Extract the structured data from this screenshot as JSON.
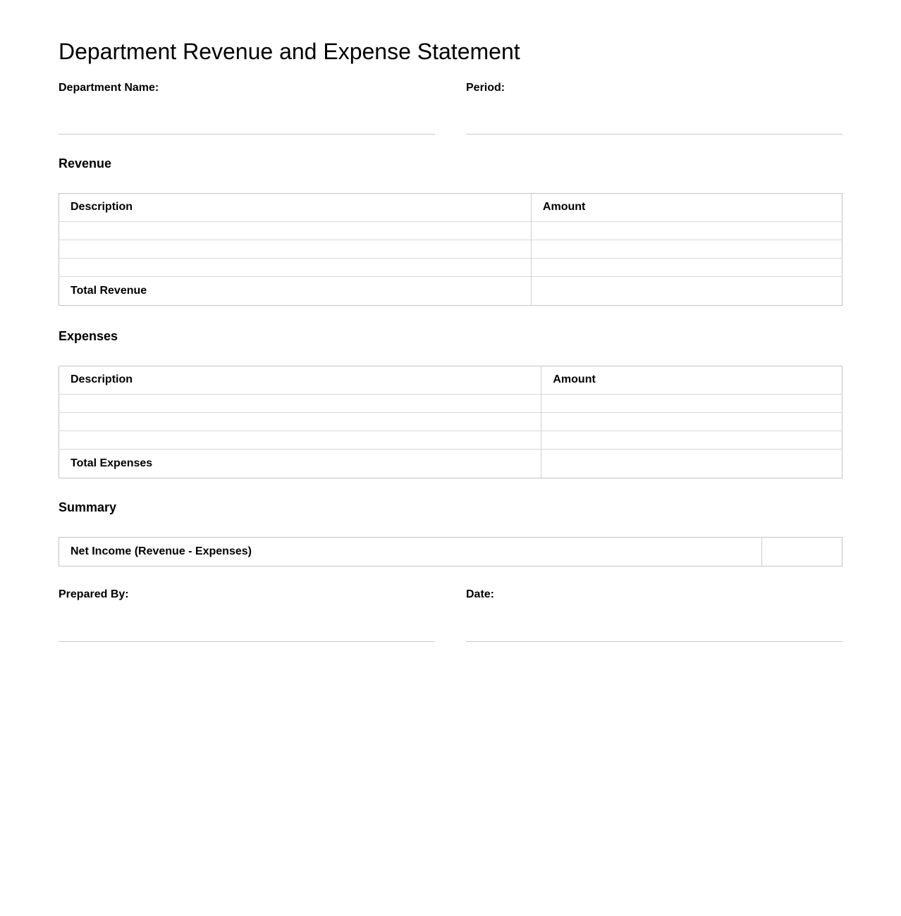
{
  "title": "Department Revenue and Expense Statement",
  "fields": {
    "department_name": {
      "label": "Department Name:",
      "value": ""
    },
    "period": {
      "label": "Period:",
      "value": ""
    },
    "prepared_by": {
      "label": "Prepared By:",
      "value": ""
    },
    "date": {
      "label": "Date:",
      "value": ""
    }
  },
  "revenue": {
    "heading": "Revenue",
    "columns": [
      "Description",
      "Amount"
    ],
    "rows": [
      [
        "",
        ""
      ],
      [
        "",
        ""
      ],
      [
        "",
        ""
      ]
    ],
    "total_label": "Total Revenue",
    "total_value": ""
  },
  "expenses": {
    "heading": "Expenses",
    "columns": [
      "Description",
      "Amount"
    ],
    "rows": [
      [
        "",
        ""
      ],
      [
        "",
        ""
      ],
      [
        "",
        ""
      ]
    ],
    "total_label": "Total Expenses",
    "total_value": ""
  },
  "summary": {
    "heading": "Summary",
    "net_income_label": "Net Income (Revenue - Expenses)",
    "net_income_value": ""
  },
  "colors": {
    "background": "#ffffff",
    "text": "#000000",
    "table_outer_border": "#c4c4c4",
    "table_inner_line": "#d9d9d9",
    "table_column_divider": "#cfcfcf",
    "field_underline": "#c9c9c9"
  }
}
